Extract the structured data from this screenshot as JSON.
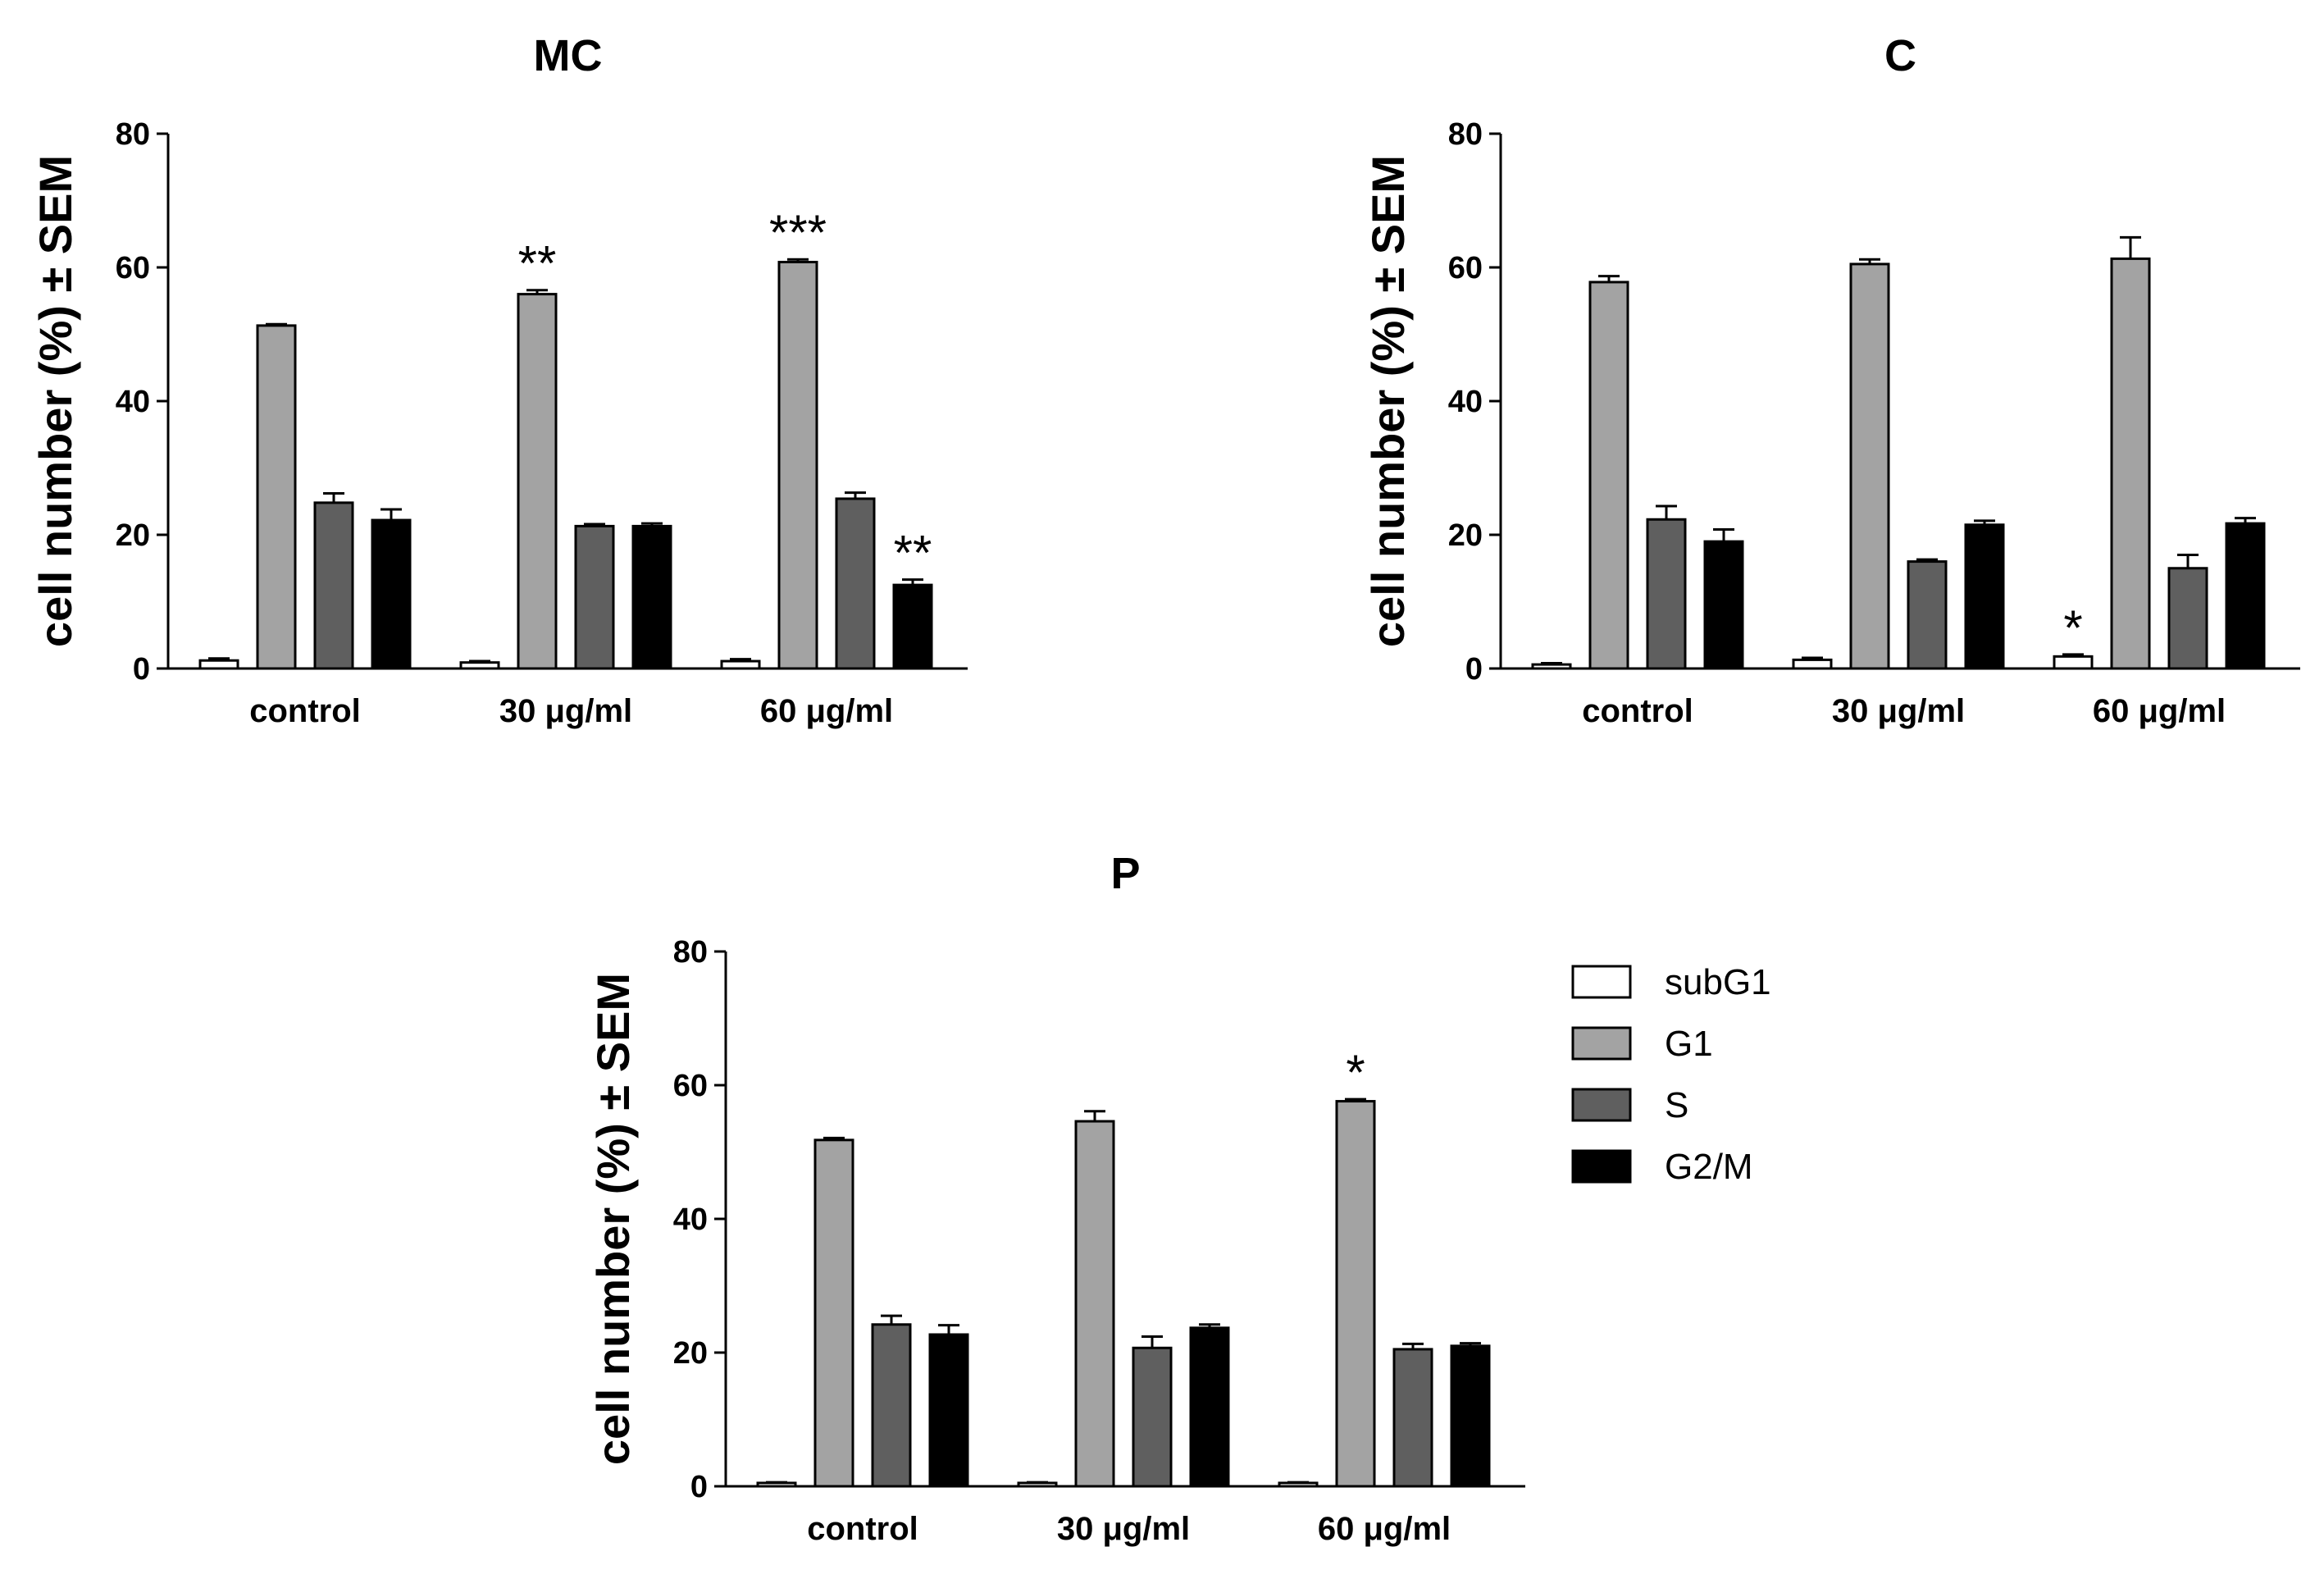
{
  "legend": [
    {
      "label": "subG1",
      "color": "#ffffff"
    },
    {
      "label": "G1",
      "color": "#a3a3a3"
    },
    {
      "label": "S",
      "color": "#5f5f5f"
    },
    {
      "label": "G2/M",
      "color": "#000000"
    }
  ],
  "chart_data": [
    {
      "type": "bar",
      "title": "MC",
      "ylabel": "cell number (%) ± SEM",
      "xlabel": "",
      "ylim": [
        0,
        80
      ],
      "yticks": [
        "0",
        "20",
        "40",
        "60",
        "80"
      ],
      "categories": [
        "control",
        "30 μg/ml",
        "60 μg/ml"
      ],
      "series": [
        {
          "name": "subG1",
          "values": [
            1.2,
            0.9,
            1.1
          ],
          "errors": [
            0.3,
            0.2,
            0.3
          ]
        },
        {
          "name": "G1",
          "values": [
            51.3,
            56.0,
            60.8
          ],
          "errors": [
            0.2,
            0.6,
            0.4
          ]
        },
        {
          "name": "S",
          "values": [
            24.8,
            21.3,
            25.4
          ],
          "errors": [
            1.4,
            0.3,
            0.9
          ]
        },
        {
          "name": "G2/M",
          "values": [
            22.2,
            21.3,
            12.5
          ],
          "errors": [
            1.6,
            0.4,
            0.8
          ]
        }
      ],
      "annotations": [
        {
          "category": 1,
          "series": 1,
          "text": "**"
        },
        {
          "category": 2,
          "series": 1,
          "text": "***"
        },
        {
          "category": 2,
          "series": 3,
          "text": "**"
        }
      ]
    },
    {
      "type": "bar",
      "title": "C",
      "ylabel": "cell number (%) ± SEM",
      "xlabel": "",
      "ylim": [
        0,
        80
      ],
      "yticks": [
        "0",
        "20",
        "40",
        "60",
        "80"
      ],
      "categories": [
        "control",
        "30 μg/ml",
        "60 μg/ml"
      ],
      "series": [
        {
          "name": "subG1",
          "values": [
            0.6,
            1.3,
            1.8
          ],
          "errors": [
            0.2,
            0.3,
            0.3
          ]
        },
        {
          "name": "G1",
          "values": [
            57.8,
            60.5,
            61.3
          ],
          "errors": [
            0.9,
            0.7,
            3.2
          ]
        },
        {
          "name": "S",
          "values": [
            22.3,
            16.0,
            15.0
          ],
          "errors": [
            2.0,
            0.3,
            2.0
          ]
        },
        {
          "name": "G2/M",
          "values": [
            19.0,
            21.5,
            21.7
          ],
          "errors": [
            1.8,
            0.6,
            0.8
          ]
        }
      ],
      "annotations": [
        {
          "category": 2,
          "series": 0,
          "text": "*"
        }
      ]
    },
    {
      "type": "bar",
      "title": "P",
      "ylabel": "cell number (%) ± SEM",
      "xlabel": "",
      "ylim": [
        0,
        80
      ],
      "yticks": [
        "0",
        "20",
        "40",
        "60",
        "80"
      ],
      "categories": [
        "control",
        "30 μg/ml",
        "60 μg/ml"
      ],
      "series": [
        {
          "name": "subG1",
          "values": [
            0.5,
            0.5,
            0.5
          ],
          "errors": [
            0.1,
            0.1,
            0.1
          ]
        },
        {
          "name": "G1",
          "values": [
            51.8,
            54.6,
            57.6
          ],
          "errors": [
            0.3,
            1.5,
            0.3
          ]
        },
        {
          "name": "S",
          "values": [
            24.2,
            20.7,
            20.5
          ],
          "errors": [
            1.3,
            1.7,
            0.8
          ]
        },
        {
          "name": "G2/M",
          "values": [
            22.7,
            23.7,
            21.0
          ],
          "errors": [
            1.4,
            0.5,
            0.4
          ]
        }
      ],
      "annotations": [
        {
          "category": 2,
          "series": 1,
          "text": "*"
        }
      ]
    }
  ]
}
